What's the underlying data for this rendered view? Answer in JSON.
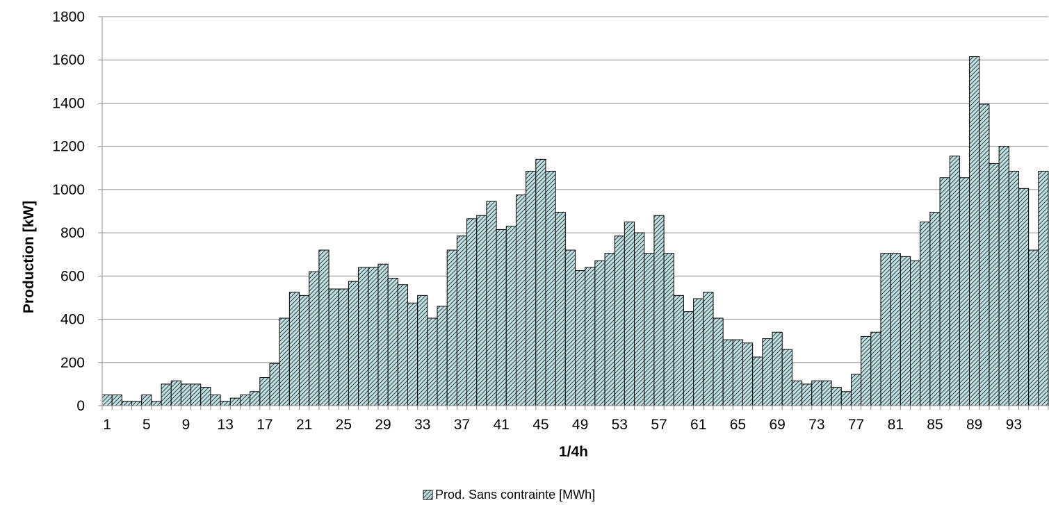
{
  "chart_data": {
    "type": "bar",
    "title": "",
    "xlabel": "1/4h",
    "ylabel": "Production [kW]",
    "ylim": [
      0,
      1800
    ],
    "yticks": [
      0,
      200,
      400,
      600,
      800,
      1000,
      1200,
      1400,
      1600,
      1800
    ],
    "xtick_labels": [
      "1",
      "5",
      "9",
      "13",
      "17",
      "21",
      "25",
      "29",
      "33",
      "37",
      "41",
      "45",
      "49",
      "53",
      "57",
      "61",
      "65",
      "69",
      "73",
      "77",
      "81",
      "85",
      "89",
      "93"
    ],
    "grid": "horizontal",
    "legend_position": "bottom-center",
    "bar_fill": "#bfe3e6",
    "bar_stroke": "#000000",
    "series": [
      {
        "name": "Prod. Sans contrainte [MWh]",
        "values": [
          50,
          50,
          20,
          20,
          50,
          20,
          100,
          115,
          100,
          100,
          85,
          50,
          20,
          35,
          50,
          65,
          130,
          195,
          405,
          525,
          510,
          620,
          720,
          540,
          540,
          575,
          640,
          640,
          655,
          590,
          560,
          475,
          510,
          405,
          460,
          720,
          785,
          865,
          880,
          945,
          815,
          830,
          975,
          1085,
          1140,
          1085,
          895,
          720,
          625,
          640,
          670,
          705,
          785,
          850,
          800,
          705,
          880,
          705,
          510,
          435,
          495,
          525,
          405,
          305,
          305,
          290,
          225,
          310,
          340,
          260,
          115,
          100,
          115,
          115,
          85,
          65,
          145,
          320,
          340,
          705,
          705,
          690,
          670,
          850,
          895,
          1055,
          1155,
          1055,
          1615,
          1395,
          1120,
          1200,
          1085,
          1005,
          720,
          1085
        ]
      }
    ]
  }
}
